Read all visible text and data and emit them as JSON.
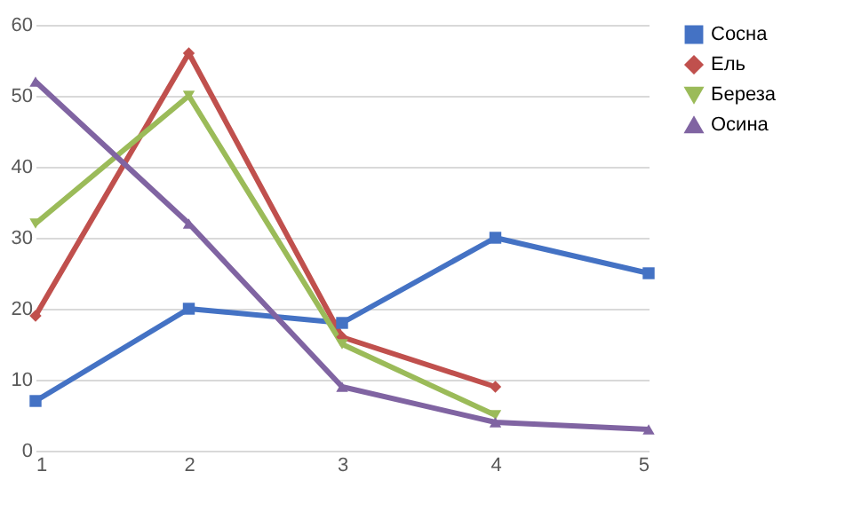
{
  "chart_data": {
    "type": "line",
    "x": [
      1,
      2,
      3,
      4,
      5
    ],
    "series": [
      {
        "name": "Сосна",
        "color": "#4472c4",
        "marker": "square",
        "values": [
          7,
          20,
          18,
          30,
          25
        ]
      },
      {
        "name": "Ель",
        "color": "#c0504d",
        "marker": "diamond",
        "values": [
          19,
          56,
          16,
          9,
          null
        ]
      },
      {
        "name": "Береза",
        "color": "#9bbb59",
        "marker": "triangle-down",
        "values": [
          32,
          50,
          15,
          5,
          null
        ]
      },
      {
        "name": "Осина",
        "color": "#8064a2",
        "marker": "triangle",
        "values": [
          52,
          32,
          9,
          4,
          3
        ]
      }
    ],
    "xlim": [
      1,
      5
    ],
    "xticks": [
      1,
      2,
      3,
      4,
      5
    ],
    "ylim": [
      0,
      60
    ],
    "yticks": [
      0,
      10,
      20,
      30,
      40,
      50,
      60
    ],
    "grid": "y",
    "legend": "right",
    "line_style": "solid"
  }
}
